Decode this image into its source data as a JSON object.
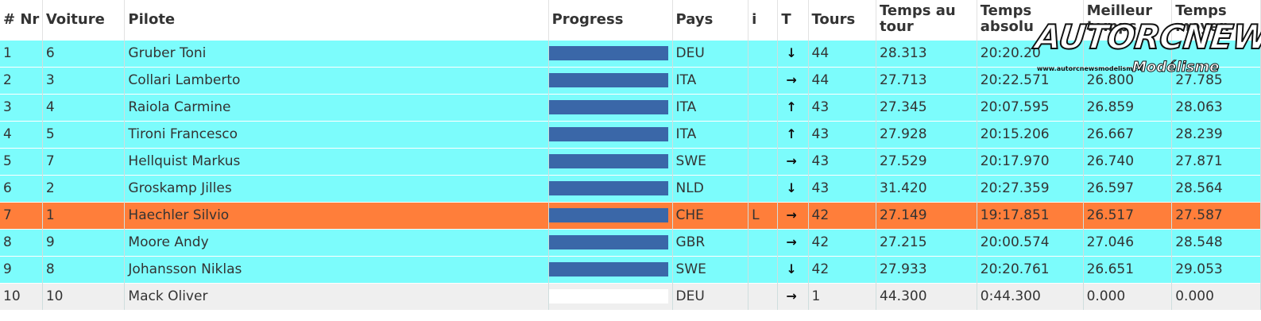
{
  "headers": {
    "pos": "# Nr",
    "car": "Voiture",
    "driver": "Pilote",
    "progress": "Progress",
    "country": "Pays",
    "info": "i",
    "trend": "T",
    "laps": "Tours",
    "lap_time": "Temps au tour",
    "abs_time": "Temps absolu",
    "best_time": "Meilleur temps",
    "avg_time": "Temps moyen"
  },
  "rows": [
    {
      "pos": "1",
      "car": "6",
      "driver": "Gruber Toni",
      "progress": 1.0,
      "country": "DEU",
      "info": "",
      "trend": "↓",
      "laps": "44",
      "lap_time": "28.313",
      "abs_time": "20:20.20",
      "best_time": "",
      "avg_time": "",
      "color": "cyan"
    },
    {
      "pos": "2",
      "car": "3",
      "driver": "Collari Lamberto",
      "progress": 1.0,
      "country": "ITA",
      "info": "",
      "trend": "→",
      "laps": "44",
      "lap_time": "27.713",
      "abs_time": "20:22.571",
      "best_time": "26.800",
      "avg_time": "27.785",
      "color": "cyan"
    },
    {
      "pos": "3",
      "car": "4",
      "driver": "Raiola Carmine",
      "progress": 1.0,
      "country": "ITA",
      "info": "",
      "trend": "↑",
      "laps": "43",
      "lap_time": "27.345",
      "abs_time": "20:07.595",
      "best_time": "26.859",
      "avg_time": "28.063",
      "color": "cyan"
    },
    {
      "pos": "4",
      "car": "5",
      "driver": "Tironi Francesco",
      "progress": 1.0,
      "country": "ITA",
      "info": "",
      "trend": "↑",
      "laps": "43",
      "lap_time": "27.928",
      "abs_time": "20:15.206",
      "best_time": "26.667",
      "avg_time": "28.239",
      "color": "cyan"
    },
    {
      "pos": "5",
      "car": "7",
      "driver": "Hellquist Markus",
      "progress": 1.0,
      "country": "SWE",
      "info": "",
      "trend": "→",
      "laps": "43",
      "lap_time": "27.529",
      "abs_time": "20:17.970",
      "best_time": "26.740",
      "avg_time": "27.871",
      "color": "cyan"
    },
    {
      "pos": "6",
      "car": "2",
      "driver": "Groskamp Jilles",
      "progress": 1.0,
      "country": "NLD",
      "info": "",
      "trend": "↓",
      "laps": "43",
      "lap_time": "31.420",
      "abs_time": "20:27.359",
      "best_time": "26.597",
      "avg_time": "28.564",
      "color": "cyan"
    },
    {
      "pos": "7",
      "car": "1",
      "driver": "Haechler Silvio",
      "progress": 1.0,
      "country": "CHE",
      "info": "L",
      "trend": "→",
      "laps": "42",
      "lap_time": "27.149",
      "abs_time": "19:17.851",
      "best_time": "26.517",
      "avg_time": "27.587",
      "color": "orange"
    },
    {
      "pos": "8",
      "car": "9",
      "driver": "Moore Andy",
      "progress": 1.0,
      "country": "GBR",
      "info": "",
      "trend": "→",
      "laps": "42",
      "lap_time": "27.215",
      "abs_time": "20:00.574",
      "best_time": "27.046",
      "avg_time": "28.548",
      "color": "cyan"
    },
    {
      "pos": "9",
      "car": "8",
      "driver": "Johansson Niklas",
      "progress": 1.0,
      "country": "SWE",
      "info": "",
      "trend": "↓",
      "laps": "42",
      "lap_time": "27.933",
      "abs_time": "20:20.761",
      "best_time": "26.651",
      "avg_time": "29.053",
      "color": "cyan"
    },
    {
      "pos": "10",
      "car": "10",
      "driver": "Mack Oliver",
      "progress": 0.0,
      "country": "DEU",
      "info": "",
      "trend": "→",
      "laps": "1",
      "lap_time": "44.300",
      "abs_time": "0:44.300",
      "best_time": "0.000",
      "avg_time": "0.000",
      "color": "grey"
    }
  ],
  "logo": {
    "main": "AUTORCNEWS",
    "sub": "Modélisme",
    "url": "www.autorcnewsmodelisme.fr"
  },
  "colors": {
    "cyan": "#7cfcfc",
    "orange": "#ff7e3a",
    "grey": "#efefef",
    "bar": "#3a67a8"
  }
}
